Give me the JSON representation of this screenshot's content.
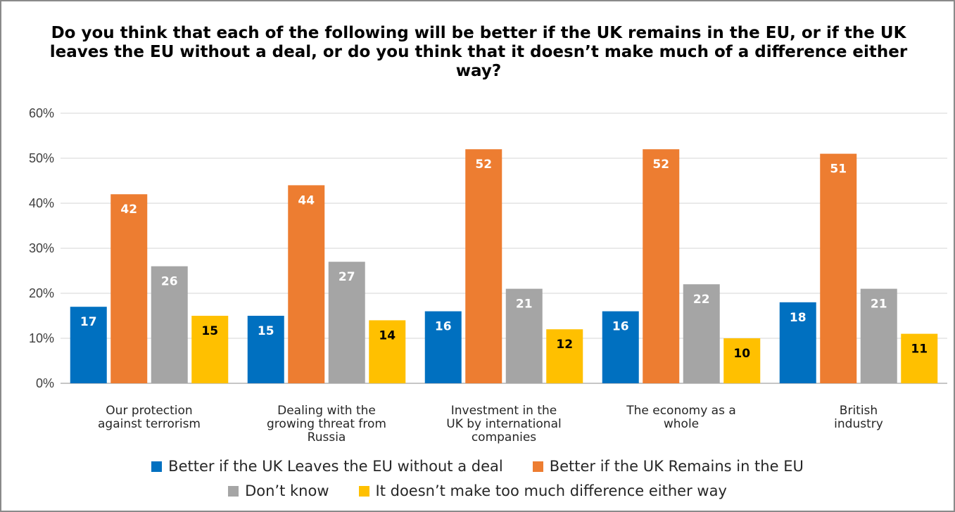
{
  "chart_data": {
    "type": "bar",
    "title": "Do you think that each of the following will be better if the UK remains in the EU, or if the UK leaves the EU without a deal, or do you think that it doesn’t make much of a difference either way?",
    "xlabel": "",
    "ylabel": "",
    "ylim": [
      0,
      60
    ],
    "yticks": [
      "0%",
      "10%",
      "20%",
      "30%",
      "40%",
      "50%",
      "60%"
    ],
    "grid": true,
    "legend_position": "bottom",
    "categories": [
      [
        "Our protection",
        "against terrorism"
      ],
      [
        "Dealing with the",
        "growing threat from",
        "Russia"
      ],
      [
        "Investment in the",
        "UK by international",
        "companies"
      ],
      [
        "The economy as a",
        "whole"
      ],
      [
        "British",
        "industry"
      ]
    ],
    "series": [
      {
        "name": "Better if the UK Leaves the EU without a deal",
        "color": "#0070C0",
        "label_color": "#ffffff",
        "values": [
          17,
          15,
          16,
          16,
          18
        ]
      },
      {
        "name": "Better if the UK Remains in the EU",
        "color": "#ED7D31",
        "label_color": "#ffffff",
        "values": [
          42,
          44,
          52,
          52,
          51
        ]
      },
      {
        "name": "Don’t know",
        "color": "#A5A5A5",
        "label_color": "#ffffff",
        "values": [
          26,
          27,
          21,
          22,
          21
        ]
      },
      {
        "name": "It doesn’t make too much difference either way",
        "color": "#FFC000",
        "label_color": "#000000",
        "values": [
          15,
          14,
          12,
          10,
          11
        ]
      }
    ]
  }
}
